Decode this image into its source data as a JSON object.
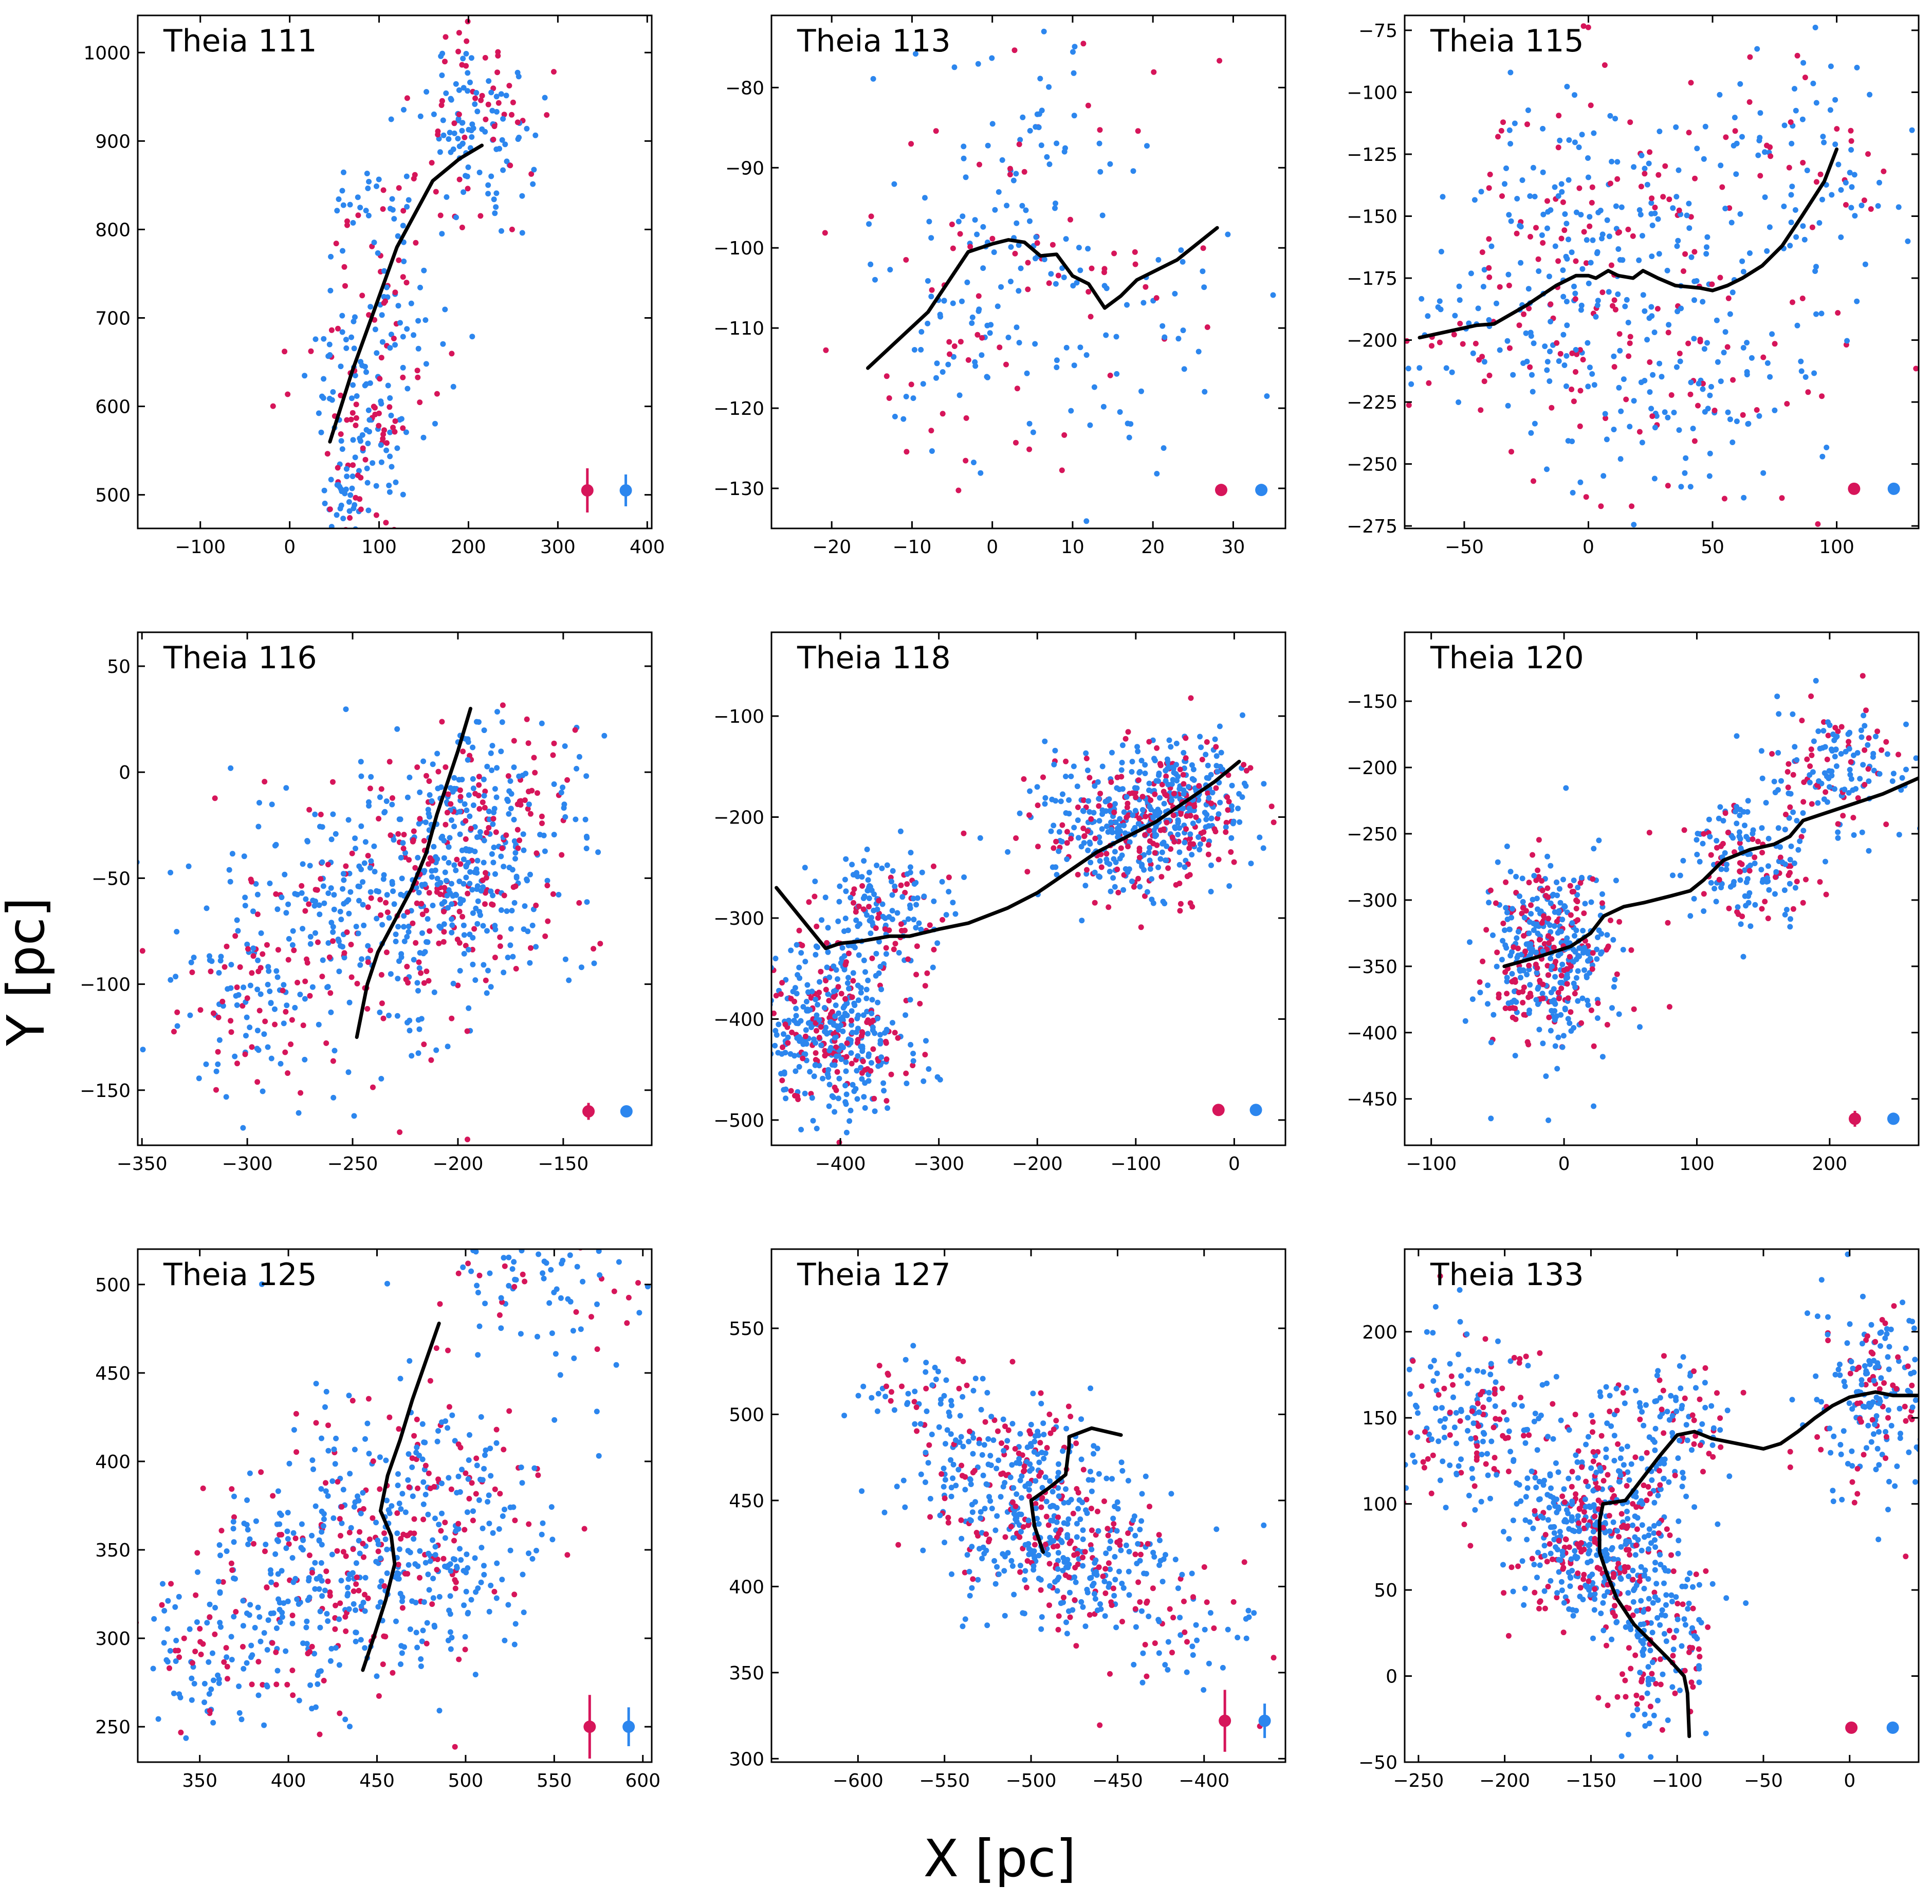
{
  "figure": {
    "xlabel": "X [pc]",
    "ylabel": "Y [pc]"
  },
  "colors": {
    "red": "#d6155a",
    "blue": "#2c86ee",
    "spine": "#000000"
  },
  "chart_data": [
    {
      "type": "scatter",
      "title": "Theia 111",
      "xlim": [
        -170,
        405
      ],
      "ylim": [
        462,
        1042
      ],
      "xticks": [
        -100,
        0,
        100,
        200,
        300,
        400
      ],
      "yticks": [
        500,
        600,
        700,
        800,
        900,
        1000
      ],
      "ytick_side": "left",
      "clumps": [
        [
          80,
          560,
          30,
          70,
          120
        ],
        [
          100,
          720,
          35,
          80,
          120
        ],
        [
          200,
          920,
          35,
          60,
          150
        ],
        [
          65,
          490,
          12,
          25,
          30
        ]
      ],
      "spine": [
        [
          45,
          560
        ],
        [
          70,
          640
        ],
        [
          95,
          710
        ],
        [
          120,
          780
        ],
        [
          160,
          855
        ],
        [
          190,
          880
        ],
        [
          215,
          895
        ]
      ],
      "errors": [
        {
          "color": "red",
          "x": 333,
          "y": 505,
          "ylow": 480,
          "yhigh": 530
        },
        {
          "color": "blue",
          "x": 376,
          "y": 505,
          "ylow": 487,
          "yhigh": 523
        }
      ]
    },
    {
      "type": "scatter",
      "title": "Theia 113",
      "xlim": [
        -27.5,
        36.5
      ],
      "ylim": [
        -135,
        -71
      ],
      "xticks": [
        -20,
        -10,
        0,
        10,
        20,
        30
      ],
      "yticks": [
        -80,
        -90,
        -100,
        -110,
        -120,
        -130
      ],
      "ytick_side": "left",
      "clumps": [
        [
          4,
          -100,
          8,
          14,
          180
        ],
        [
          -8,
          -112,
          6,
          10,
          40
        ],
        [
          20,
          -110,
          6,
          10,
          40
        ]
      ],
      "spine": [
        [
          -15.5,
          -115
        ],
        [
          -8,
          -108
        ],
        [
          -3,
          -100.5
        ],
        [
          0,
          -99.5
        ],
        [
          2,
          -99
        ],
        [
          4,
          -99.3
        ],
        [
          6,
          -101
        ],
        [
          8,
          -100.8
        ],
        [
          10,
          -103.5
        ],
        [
          12,
          -104.5
        ],
        [
          14,
          -107.5
        ],
        [
          16,
          -106
        ],
        [
          18,
          -104
        ],
        [
          20,
          -103
        ],
        [
          23,
          -101.5
        ],
        [
          28,
          -97.5
        ]
      ],
      "errors": [
        {
          "color": "red",
          "x": 28.5,
          "y": -130.2,
          "ylow": -130.7,
          "yhigh": -129.7
        },
        {
          "color": "blue",
          "x": 33.5,
          "y": -130.2,
          "ylow": -130.7,
          "yhigh": -129.7
        }
      ]
    },
    {
      "type": "scatter",
      "title": "Theia 115",
      "xlim": [
        -74,
        133
      ],
      "ylim": [
        -276,
        -69
      ],
      "xticks": [
        -50,
        0,
        50,
        100
      ],
      "yticks": [
        -75,
        -100,
        -125,
        -150,
        -175,
        -200,
        -225,
        -250,
        -275
      ],
      "ytick_side": "left",
      "clumps": [
        [
          0,
          -150,
          25,
          30,
          200
        ],
        [
          30,
          -215,
          35,
          25,
          220
        ],
        [
          80,
          -130,
          25,
          25,
          120
        ],
        [
          -50,
          -200,
          15,
          15,
          40
        ]
      ],
      "spine": [
        [
          -68,
          -199
        ],
        [
          -45,
          -194
        ],
        [
          -38,
          -193.5
        ],
        [
          -25,
          -186
        ],
        [
          -13,
          -178
        ],
        [
          -5,
          -174
        ],
        [
          0,
          -174
        ],
        [
          3,
          -175
        ],
        [
          8,
          -172
        ],
        [
          12,
          -174
        ],
        [
          18,
          -175
        ],
        [
          22,
          -172
        ],
        [
          28,
          -175
        ],
        [
          35,
          -178
        ],
        [
          45,
          -179
        ],
        [
          50,
          -180
        ],
        [
          56,
          -178
        ],
        [
          62,
          -175
        ],
        [
          70,
          -170
        ],
        [
          78,
          -162
        ],
        [
          86,
          -150
        ],
        [
          95,
          -136
        ],
        [
          100,
          -123
        ]
      ],
      "errors": [
        {
          "color": "red",
          "x": 107,
          "y": -260,
          "ylow": -262,
          "yhigh": -258
        },
        {
          "color": "blue",
          "x": 123,
          "y": -260,
          "ylow": -262,
          "yhigh": -258
        }
      ]
    },
    {
      "type": "scatter",
      "title": "Theia 116",
      "xlim": [
        -352,
        -108
      ],
      "ylim": [
        -176,
        66
      ],
      "xticks": [
        -350,
        -300,
        -250,
        -200,
        -150
      ],
      "yticks": [
        50,
        0,
        -50,
        -100,
        -150
      ],
      "ytick_side": "left",
      "clumps": [
        [
          -200,
          -50,
          25,
          30,
          350
        ],
        [
          -245,
          -70,
          40,
          35,
          300
        ],
        [
          -300,
          -110,
          25,
          25,
          100
        ],
        [
          -180,
          -10,
          20,
          20,
          100
        ]
      ],
      "spine": [
        [
          -248,
          -125
        ],
        [
          -243,
          -100
        ],
        [
          -238,
          -85
        ],
        [
          -230,
          -70
        ],
        [
          -222,
          -55
        ],
        [
          -215,
          -38
        ],
        [
          -210,
          -20
        ],
        [
          -205,
          -5
        ],
        [
          -200,
          10
        ],
        [
          -194,
          30
        ]
      ],
      "errors": [
        {
          "color": "red",
          "x": -138,
          "y": -160,
          "ylow": -164,
          "yhigh": -156
        },
        {
          "color": "blue",
          "x": -120,
          "y": -160,
          "ylow": -162,
          "yhigh": -158
        }
      ]
    },
    {
      "type": "scatter",
      "title": "Theia 118",
      "xlim": [
        -470,
        52
      ],
      "ylim": [
        -525,
        -17
      ],
      "xticks": [
        -400,
        -300,
        -200,
        -100,
        0
      ],
      "yticks": [
        -100,
        -200,
        -300,
        -400,
        -500
      ],
      "ytick_side": "left",
      "clumps": [
        [
          -410,
          -410,
          40,
          40,
          450
        ],
        [
          -360,
          -290,
          35,
          30,
          160
        ],
        [
          -100,
          -210,
          50,
          35,
          450
        ],
        [
          -40,
          -170,
          25,
          25,
          150
        ]
      ],
      "spine": [
        [
          -465,
          -270
        ],
        [
          -440,
          -300
        ],
        [
          -415,
          -330
        ],
        [
          -400,
          -325
        ],
        [
          -380,
          -323
        ],
        [
          -350,
          -318
        ],
        [
          -330,
          -318
        ],
        [
          -300,
          -311
        ],
        [
          -270,
          -305
        ],
        [
          -230,
          -290
        ],
        [
          -200,
          -275
        ],
        [
          -170,
          -255
        ],
        [
          -140,
          -235
        ],
        [
          -110,
          -220
        ],
        [
          -80,
          -205
        ],
        [
          -50,
          -185
        ],
        [
          -20,
          -165
        ],
        [
          5,
          -145
        ]
      ],
      "errors": [
        {
          "color": "red",
          "x": -16,
          "y": -490,
          "ylow": -492,
          "yhigh": -488
        },
        {
          "color": "blue",
          "x": 22,
          "y": -490,
          "ylow": -492,
          "yhigh": -488
        }
      ]
    },
    {
      "type": "scatter",
      "title": "Theia 120",
      "xlim": [
        -120,
        267
      ],
      "ylim": [
        -485,
        -98
      ],
      "xticks": [
        -100,
        0,
        100,
        200
      ],
      "yticks": [
        -150,
        -200,
        -250,
        -300,
        -350,
        -400,
        -450
      ],
      "ytick_side": "left",
      "clumps": [
        [
          -10,
          -340,
          25,
          35,
          450
        ],
        [
          140,
          -270,
          25,
          25,
          180
        ],
        [
          210,
          -200,
          25,
          25,
          150
        ]
      ],
      "spine": [
        [
          -45,
          -350
        ],
        [
          -20,
          -343
        ],
        [
          5,
          -335
        ],
        [
          20,
          -325
        ],
        [
          30,
          -312
        ],
        [
          45,
          -305
        ],
        [
          60,
          -302
        ],
        [
          80,
          -297
        ],
        [
          95,
          -293
        ],
        [
          105,
          -285
        ],
        [
          120,
          -270
        ],
        [
          140,
          -262
        ],
        [
          158,
          -258
        ],
        [
          170,
          -252
        ],
        [
          180,
          -240
        ],
        [
          210,
          -230
        ],
        [
          240,
          -220
        ],
        [
          267,
          -208
        ]
      ],
      "errors": [
        {
          "color": "red",
          "x": 219,
          "y": -465,
          "ylow": -471,
          "yhigh": -459
        },
        {
          "color": "blue",
          "x": 248,
          "y": -465,
          "ylow": -467,
          "yhigh": -463
        }
      ]
    },
    {
      "type": "scatter",
      "title": "Theia 125",
      "xlim": [
        315,
        605
      ],
      "ylim": [
        230,
        520
      ],
      "xticks": [
        350,
        400,
        450,
        500,
        550,
        600
      ],
      "yticks": [
        250,
        300,
        350,
        400,
        450,
        500
      ],
      "ytick_side": "left",
      "clumps": [
        [
          470,
          360,
          40,
          40,
          400
        ],
        [
          400,
          320,
          35,
          35,
          250
        ],
        [
          540,
          500,
          30,
          20,
          90
        ],
        [
          340,
          280,
          15,
          20,
          40
        ]
      ],
      "spine": [
        [
          442,
          282
        ],
        [
          448,
          300
        ],
        [
          455,
          322
        ],
        [
          460,
          342
        ],
        [
          458,
          358
        ],
        [
          452,
          372
        ],
        [
          456,
          392
        ],
        [
          463,
          412
        ],
        [
          470,
          435
        ],
        [
          478,
          458
        ],
        [
          485,
          478
        ]
      ],
      "errors": [
        {
          "color": "red",
          "x": 570,
          "y": 250,
          "ylow": 232,
          "yhigh": 268
        },
        {
          "color": "blue",
          "x": 592,
          "y": 250,
          "ylow": 239,
          "yhigh": 261
        }
      ]
    },
    {
      "type": "scatter",
      "title": "Theia 127",
      "xlim": [
        -650,
        -353
      ],
      "ylim": [
        298,
        596
      ],
      "xticks": [
        -600,
        -550,
        -500,
        -450,
        -400
      ],
      "yticks": [
        300,
        350,
        400,
        450,
        500,
        550
      ],
      "ytick_side": "left",
      "clumps": [
        [
          -510,
          460,
          30,
          25,
          300
        ],
        [
          -480,
          415,
          30,
          20,
          250
        ],
        [
          -560,
          510,
          20,
          15,
          60
        ],
        [
          -420,
          380,
          25,
          20,
          70
        ]
      ],
      "spine": [
        [
          -493,
          420
        ],
        [
          -498,
          435
        ],
        [
          -500,
          450
        ],
        [
          -490,
          457
        ],
        [
          -480,
          465
        ],
        [
          -478,
          482
        ],
        [
          -478,
          487
        ],
        [
          -465,
          492
        ],
        [
          -448,
          488
        ]
      ],
      "errors": [
        {
          "color": "red",
          "x": -388,
          "y": 322,
          "ylow": 304,
          "yhigh": 340
        },
        {
          "color": "blue",
          "x": -365,
          "y": 322,
          "ylow": 312,
          "yhigh": 332
        }
      ]
    },
    {
      "type": "scatter",
      "title": "Theia 133",
      "xlim": [
        -258,
        40
      ],
      "ylim": [
        -50,
        248
      ],
      "xticks": [
        -250,
        -200,
        -150,
        -100,
        -50,
        0
      ],
      "yticks": [
        -50,
        0,
        50,
        100,
        150,
        200
      ],
      "ytick_side": "left",
      "clumps": [
        [
          -145,
          85,
          25,
          30,
          550
        ],
        [
          -110,
          20,
          15,
          25,
          140
        ],
        [
          -220,
          150,
          25,
          30,
          180
        ],
        [
          15,
          160,
          18,
          30,
          200
        ],
        [
          -100,
          150,
          15,
          15,
          80
        ]
      ],
      "spine": [
        [
          -93,
          -35
        ],
        [
          -94,
          -10
        ],
        [
          -96,
          0
        ],
        [
          -105,
          10
        ],
        [
          -115,
          20
        ],
        [
          -125,
          30
        ],
        [
          -135,
          45
        ],
        [
          -141,
          60
        ],
        [
          -145,
          72
        ],
        [
          -145,
          90
        ],
        [
          -143,
          100
        ],
        [
          -130,
          102
        ],
        [
          -120,
          115
        ],
        [
          -110,
          128
        ],
        [
          -100,
          140
        ],
        [
          -90,
          142
        ],
        [
          -80,
          138
        ],
        [
          -65,
          135
        ],
        [
          -50,
          132
        ],
        [
          -40,
          135
        ],
        [
          -30,
          142
        ],
        [
          -20,
          150
        ],
        [
          -10,
          157
        ],
        [
          0,
          162
        ],
        [
          15,
          165
        ],
        [
          25,
          163
        ],
        [
          40,
          163
        ]
      ],
      "errors": [
        {
          "color": "red",
          "x": 1,
          "y": -30,
          "ylow": -31.5,
          "yhigh": -28.5
        },
        {
          "color": "blue",
          "x": 25,
          "y": -30,
          "ylow": -31.5,
          "yhigh": -28.5
        }
      ]
    }
  ]
}
